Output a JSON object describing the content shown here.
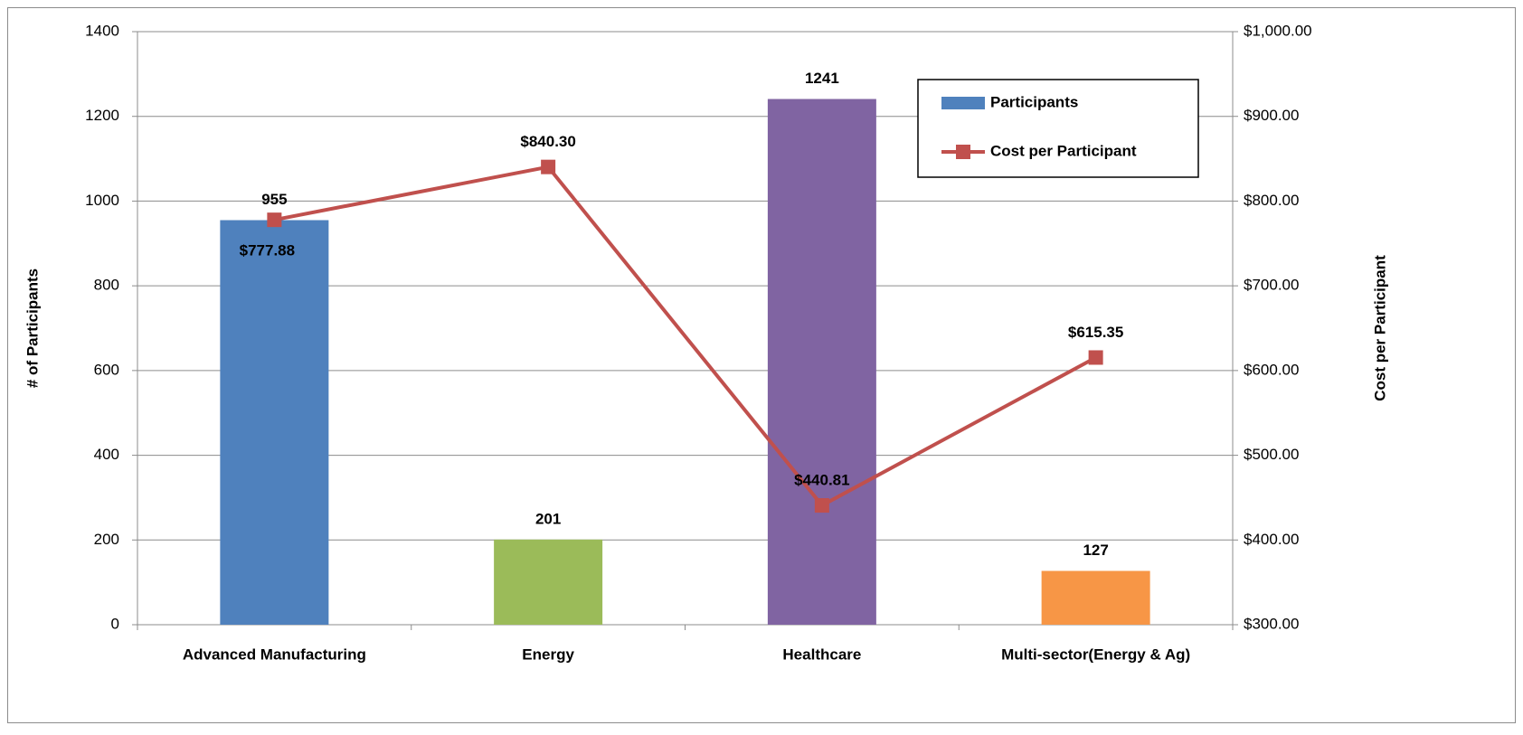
{
  "chart_data": {
    "type": "bar",
    "categories": [
      "Advanced Manufacturing",
      "Energy",
      "Healthcare",
      "Multi-sector(Energy & Ag)"
    ],
    "series": [
      {
        "name": "Participants",
        "color": "#4f81bd",
        "colors": [
          "#4f81bd",
          "#9bbb59",
          "#8064a2",
          "#f79646"
        ],
        "values": [
          955,
          201,
          1241,
          127
        ]
      },
      {
        "name": "Cost per Participant",
        "type": "line",
        "axis": "y2",
        "color": "#c0504d",
        "values": [
          777.88,
          840.3,
          440.81,
          615.35
        ],
        "value_labels": [
          "$777.88",
          "$840.30",
          "$440.81",
          "$615.35"
        ]
      }
    ],
    "ylabel": "# of Participants",
    "y2label": "Cost per Participant",
    "ylim": [
      0,
      1400
    ],
    "yticks": [
      0,
      200,
      400,
      600,
      800,
      1000,
      1200,
      1400
    ],
    "y2lim": [
      300,
      1000
    ],
    "y2ticks": [
      {
        "value": 300,
        "label": "$300.00"
      },
      {
        "value": 400,
        "label": "$400.00"
      },
      {
        "value": 500,
        "label": "$500.00"
      },
      {
        "value": 600,
        "label": "$600.00"
      },
      {
        "value": 700,
        "label": "$700.00"
      },
      {
        "value": 800,
        "label": "$800.00"
      },
      {
        "value": 900,
        "label": "$900.00"
      },
      {
        "value": 1000,
        "label": "$1,000.00"
      }
    ],
    "grid": true,
    "legend": "top-right"
  }
}
